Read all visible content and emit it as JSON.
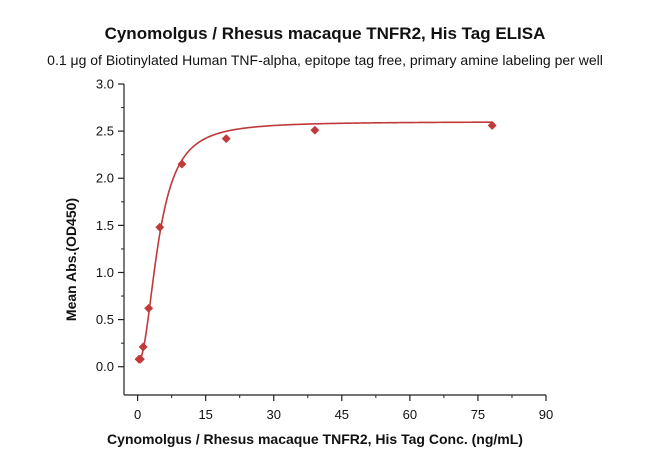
{
  "chart_data": {
    "type": "scatter",
    "title": "Cynomolgus / Rhesus macaque TNFR2, His Tag ELISA",
    "subtitle": "0.1 μg of Biotinylated Human TNF-alpha, epitope tag free, primary amine labeling per well",
    "xlabel": "Cynomolgus / Rhesus macaque TNFR2, His Tag Conc. (ng/mL)",
    "ylabel": "Mean Abs.(OD450)",
    "xlim": [
      -3,
      90
    ],
    "ylim": [
      -0.3,
      3.0
    ],
    "xticks": [
      0,
      15,
      30,
      45,
      60,
      75,
      90
    ],
    "yticks": [
      0.0,
      0.5,
      1.0,
      1.5,
      2.0,
      2.5,
      3.0
    ],
    "xtick_labels": [
      "0",
      "15",
      "30",
      "45",
      "60",
      "75",
      "90"
    ],
    "ytick_labels": [
      "0.0",
      "0.5",
      "1.0",
      "1.5",
      "2.0",
      "2.5",
      "3.0"
    ],
    "grid": false,
    "legend": "none",
    "colors": {
      "series": "#c0393b",
      "axis": "#222222"
    },
    "series": [
      {
        "x": [
          0.31,
          0.61,
          1.22,
          2.44,
          4.88,
          9.77,
          19.53,
          39.06,
          78.13
        ],
        "y": [
          0.08,
          0.08,
          0.21,
          0.62,
          1.48,
          2.15,
          2.42,
          2.51,
          2.56
        ],
        "fit": "sigmoidal"
      }
    ]
  }
}
